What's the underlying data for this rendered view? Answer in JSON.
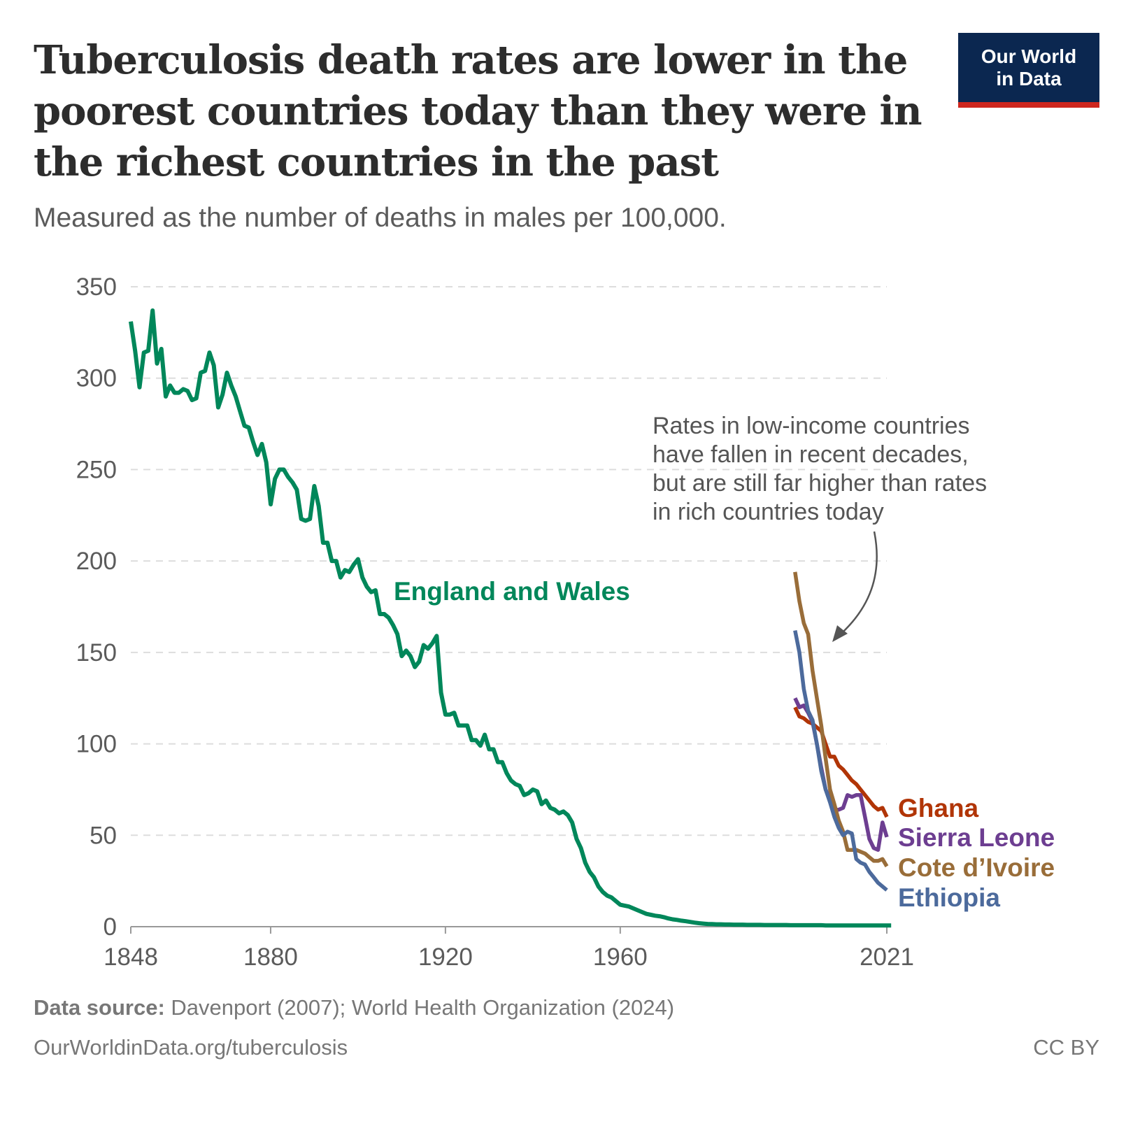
{
  "header": {
    "title": "Tuberculosis death rates are lower in the poorest countries today than they were in the richest countries in the past",
    "subtitle": "Measured as the number of deaths in males per 100,000."
  },
  "logo": {
    "line1": "Our World",
    "line2": "in Data",
    "bg": "#0b2750",
    "accent": "#ce261e"
  },
  "footer": {
    "source_label": "Data source:",
    "source_text": "Davenport (2007); World Health Organization (2024)",
    "url": "OurWorldinData.org/tuberculosis",
    "license": "CC BY"
  },
  "chart_data": {
    "type": "line",
    "title": "Tuberculosis death rates are lower in the poorest countries today than they were in the richest countries in the past",
    "xlabel": "",
    "ylabel": "",
    "xlim": [
      1848,
      2021
    ],
    "ylim": [
      0,
      350
    ],
    "x_ticks": [
      "1848",
      "1880",
      "1920",
      "1960",
      "2021"
    ],
    "y_ticks": [
      "0",
      "50",
      "100",
      "150",
      "200",
      "250",
      "300",
      "350"
    ],
    "grid": "horizontal dashed",
    "legend": "inline labels at line ends",
    "annotation": [
      "Rates in low-income countries",
      "have fallen in recent decades,",
      "but are still far higher than rates",
      "in rich countries today"
    ],
    "series": [
      {
        "name": "England and Wales",
        "color": "#00875a",
        "start_year": 1848,
        "values": [
          331,
          315,
          295,
          314,
          315,
          337,
          308,
          316,
          290,
          296,
          292,
          292,
          294,
          293,
          288,
          289,
          303,
          304,
          314,
          307,
          284,
          291,
          303,
          296,
          290,
          282,
          274,
          273,
          265,
          258,
          264,
          254,
          231,
          245,
          250,
          250,
          246,
          243,
          239,
          223,
          222,
          223,
          241,
          230,
          210,
          210,
          200,
          200,
          191,
          195,
          194,
          198,
          201,
          191,
          186,
          183,
          184,
          171,
          171,
          169,
          165,
          160,
          148,
          151,
          148,
          142,
          145,
          154,
          152,
          155,
          159,
          128,
          116,
          116,
          117,
          110,
          110,
          110,
          102,
          102,
          99,
          105,
          97,
          97,
          90,
          90,
          84,
          80,
          78,
          77,
          72,
          73,
          75,
          74,
          67,
          69,
          65,
          64,
          62,
          63,
          61,
          57,
          48,
          43,
          35,
          30,
          27,
          22,
          19,
          17,
          16,
          14,
          12,
          11.5,
          11,
          10,
          9,
          8,
          7,
          6.5,
          6,
          5.7,
          5.2,
          4.5,
          4,
          3.7,
          3.3,
          3,
          2.6,
          2.2,
          1.9,
          1.7,
          1.5,
          1.4,
          1.3,
          1.3,
          1.2,
          1.2,
          1.1,
          1.1,
          1.1,
          1.0,
          1.0,
          1.0,
          1.0,
          0.9,
          0.9,
          0.9,
          0.9,
          0.9,
          0.9,
          0.8,
          0.8,
          0.8,
          0.8,
          0.8,
          0.8,
          0.8,
          0.8,
          0.7,
          0.7,
          0.7,
          0.7,
          0.7,
          0.7,
          0.7,
          0.7,
          0.7,
          0.7,
          0.7,
          0.7,
          0.7,
          0.7,
          0.7,
          0.7
        ]
      },
      {
        "name": "Ghana",
        "color": "#b13507",
        "start_year": 2000,
        "values": [
          120,
          115,
          114,
          112,
          111,
          109,
          107,
          100,
          93,
          93,
          88,
          86,
          83,
          80,
          78,
          75,
          72,
          69,
          66,
          64,
          65,
          60
        ]
      },
      {
        "name": "Sierra Leone",
        "color": "#6d3e91",
        "start_year": 2000,
        "values": [
          125,
          120,
          121,
          117,
          112,
          100,
          87,
          75,
          70,
          64,
          64,
          65,
          72,
          71,
          72,
          72,
          60,
          48,
          43,
          42,
          57,
          49
        ]
      },
      {
        "name": "Cote d’Ivoire",
        "color": "#996d39",
        "start_year": 2000,
        "values": [
          194,
          178,
          166,
          160,
          140,
          125,
          110,
          92,
          75,
          67,
          58,
          52,
          42,
          42,
          42,
          41,
          40,
          38,
          36,
          36,
          37,
          33
        ]
      },
      {
        "name": "Ethiopia",
        "color": "#4c6a9c",
        "start_year": 2000,
        "values": [
          162,
          150,
          130,
          118,
          113,
          100,
          85,
          75,
          68,
          60,
          54,
          50,
          52,
          51,
          37,
          35,
          34,
          30,
          27,
          24,
          22,
          20
        ]
      }
    ]
  }
}
